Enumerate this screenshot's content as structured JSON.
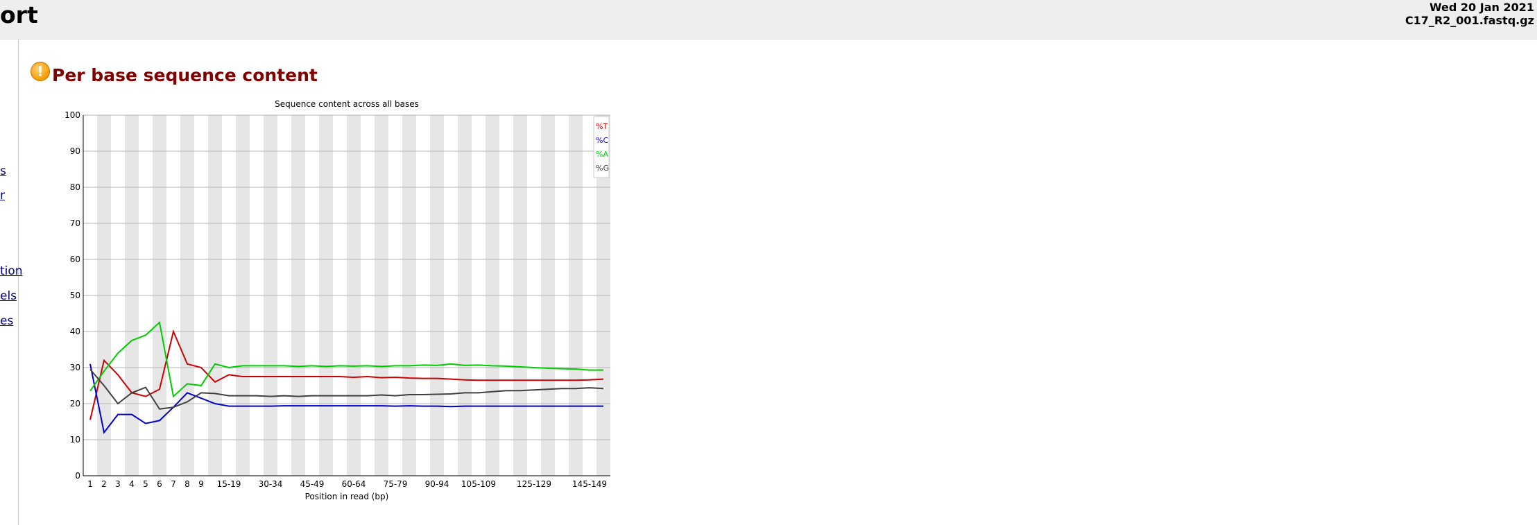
{
  "header": {
    "title_fragment": "ort",
    "date": "Wed 20 Jan 2021",
    "filename": "C17_R2_001.fastq.gz"
  },
  "sidebar": {
    "links": [
      "s",
      "r",
      "tion",
      "els",
      "es"
    ]
  },
  "section": {
    "title": "Per base sequence content",
    "status_icon": "warning-icon"
  },
  "chart_data": {
    "type": "line",
    "title": "Sequence content across all bases",
    "xlabel": "Position in read (bp)",
    "ylabel": "",
    "ylim": [
      0,
      100
    ],
    "yticks": [
      0,
      10,
      20,
      30,
      40,
      50,
      60,
      70,
      80,
      90,
      100
    ],
    "grid": true,
    "legend_position": "top-right",
    "categories": [
      "1",
      "2",
      "3",
      "4",
      "5",
      "6",
      "7",
      "8",
      "9",
      "10-14",
      "15-19",
      "20-24",
      "25-29",
      "30-34",
      "35-39",
      "40-44",
      "45-49",
      "50-54",
      "55-59",
      "60-64",
      "65-69",
      "70-74",
      "75-79",
      "80-84",
      "85-89",
      "90-94",
      "95-99",
      "100-104",
      "105-109",
      "110-114",
      "115-119",
      "120-124",
      "125-129",
      "130-134",
      "135-139",
      "140-144",
      "145-149",
      "150-151"
    ],
    "tick_labels": [
      "1",
      "2",
      "3",
      "4",
      "5",
      "6",
      "7",
      "8",
      "9",
      "",
      "15-19",
      "",
      "",
      "30-34",
      "",
      "",
      "45-49",
      "",
      "",
      "60-64",
      "",
      "",
      "75-79",
      "",
      "",
      "90-94",
      "",
      "",
      "105-109",
      "",
      "",
      "",
      "125-129",
      "",
      "",
      "",
      "145-149",
      ""
    ],
    "series": [
      {
        "name": "%T",
        "color": "#cc0000",
        "values": [
          15.5,
          32,
          28,
          23,
          22,
          24,
          40,
          31,
          30,
          26,
          28,
          27.5,
          27.5,
          27.5,
          27.5,
          27.5,
          27.5,
          27.5,
          27.5,
          27.3,
          27.5,
          27.2,
          27.3,
          27.1,
          27,
          27,
          26.8,
          26.6,
          26.5,
          26.5,
          26.5,
          26.5,
          26.5,
          26.5,
          26.5,
          26.5,
          26.6,
          26.8
        ]
      },
      {
        "name": "%C",
        "color": "#0000cc",
        "values": [
          31,
          12,
          17,
          17,
          14.5,
          15.3,
          19,
          23,
          21.5,
          20,
          19.3,
          19.3,
          19.3,
          19.3,
          19.4,
          19.4,
          19.4,
          19.4,
          19.4,
          19.4,
          19.4,
          19.4,
          19.3,
          19.4,
          19.3,
          19.3,
          19.2,
          19.3,
          19.3,
          19.3,
          19.3,
          19.3,
          19.3,
          19.3,
          19.3,
          19.3,
          19.3,
          19.3
        ]
      },
      {
        "name": "%A",
        "color": "#00cc00",
        "values": [
          23.5,
          29,
          34,
          37.5,
          39,
          42.5,
          22,
          25.5,
          25,
          31,
          30,
          30.5,
          30.5,
          30.5,
          30.5,
          30.3,
          30.5,
          30.3,
          30.5,
          30.4,
          30.5,
          30.3,
          30.5,
          30.5,
          30.7,
          30.6,
          31,
          30.6,
          30.7,
          30.5,
          30.4,
          30.2,
          30,
          29.8,
          29.7,
          29.6,
          29.3,
          29.3
        ]
      },
      {
        "name": "%G",
        "color": "#404040",
        "values": [
          29.5,
          25,
          20,
          23,
          24.5,
          18.5,
          19,
          20.5,
          23,
          22.8,
          22.2,
          22.2,
          22.2,
          22,
          22.2,
          22,
          22.2,
          22.2,
          22.2,
          22.2,
          22.2,
          22.4,
          22.2,
          22.5,
          22.5,
          22.6,
          22.7,
          23,
          23,
          23.3,
          23.6,
          23.6,
          23.8,
          24,
          24.2,
          24.2,
          24.4,
          24.2
        ]
      }
    ]
  }
}
